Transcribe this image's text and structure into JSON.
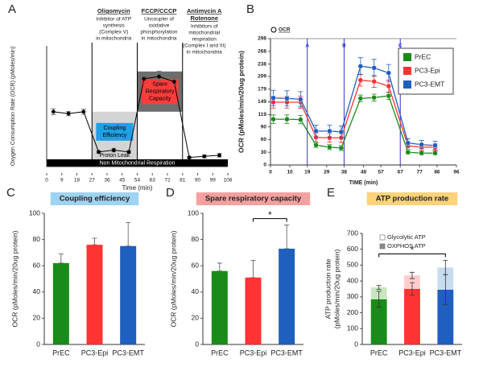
{
  "chart_data": [
    {
      "panel": "A",
      "type": "line",
      "x_label": "Time (min)",
      "y_label": "Oxygen Consumption Rate (OCR) (pMoles/min)",
      "x": [
        4,
        13,
        22,
        31,
        40,
        49,
        58,
        67,
        76,
        85,
        94,
        103
      ],
      "series": [
        {
          "color": "#000000",
          "values": [
            150,
            145,
            150,
            40,
            45,
            40,
            240,
            246,
            232,
            25,
            28,
            31
          ],
          "errors": [
            8,
            6,
            7,
            4,
            5,
            4,
            12,
            15,
            10,
            3,
            4,
            5
          ]
        }
      ],
      "xlim": [
        0,
        108
      ],
      "xticks": [
        0,
        9,
        18,
        27,
        36,
        45,
        54,
        63,
        72,
        81,
        90,
        99,
        108
      ],
      "ylim": [
        0,
        330
      ],
      "injections": [
        {
          "x": 27,
          "name": "Oligomycin",
          "note": [
            "Inhibitor of ATP",
            "synthesis",
            "(Complex V)",
            "in mitochondria"
          ]
        },
        {
          "x": 54,
          "name": "FCCP/CCCP",
          "note": [
            "Uncoupler of",
            "oxidative",
            "phosphorylation",
            "in mitochondria"
          ]
        },
        {
          "x": 81,
          "name": "Antimycin A",
          "name2": "Rotenone",
          "note": [
            "Inhibitors of",
            "mitochondrial",
            "respiration",
            "(Complex I and III)",
            "in mitochondria"
          ]
        }
      ],
      "regions": [
        {
          "label": [
            "Non Mitochondrial Respiration"
          ],
          "x": [
            0,
            108
          ],
          "y": [
            0,
            20
          ],
          "color": "#000000",
          "text_color": "#ffffff"
        },
        {
          "label": [
            "Coupling",
            "Efficiency"
          ],
          "x": [
            27,
            54
          ],
          "y": [
            40,
            150
          ],
          "color": "#d4d4d4",
          "text_color": "#000000",
          "label_color": "#1ea0e6"
        },
        {
          "label": [
            "Proton Leak"
          ],
          "x": [
            27,
            54
          ],
          "y": [
            20,
            40
          ],
          "color": "#d4d4d4",
          "text_color": "#000000"
        },
        {
          "label": [
            "Spare",
            "Respiratory",
            "Capacity"
          ],
          "x": [
            54,
            81
          ],
          "y": [
            150,
            260
          ],
          "color": "#6e6e6e",
          "text_color": "#000000",
          "label_color": "#ff3b3b"
        }
      ]
    },
    {
      "panel": "B",
      "type": "line",
      "legend_note": "OCR",
      "x_label": "TIME (min)",
      "y_label": "OCR (pMoles/min/20ug protein)",
      "x": [
        1.5,
        8.5,
        15.5,
        23.5,
        30.5,
        36.5,
        46.5,
        53.5,
        61,
        71,
        78,
        85
      ],
      "series": [
        {
          "name": "PrEC",
          "color": "#1a8a1a",
          "values": [
            108,
            108,
            107,
            47,
            42,
            40,
            157,
            159,
            163,
            30,
            28,
            28
          ],
          "errors": [
            10,
            10,
            10,
            6,
            6,
            6,
            8,
            8,
            8,
            4,
            4,
            4
          ]
        },
        {
          "name": "PC3-Epi",
          "color": "#ff3333",
          "values": [
            148,
            148,
            148,
            65,
            64,
            64,
            200,
            197,
            186,
            45,
            42,
            42
          ],
          "errors": [
            14,
            14,
            14,
            10,
            10,
            10,
            14,
            14,
            14,
            8,
            8,
            8
          ]
        },
        {
          "name": "PC3-EMT",
          "color": "#1f5fbf",
          "values": [
            158,
            157,
            155,
            80,
            80,
            78,
            233,
            229,
            217,
            52,
            48,
            46
          ],
          "errors": [
            18,
            18,
            18,
            14,
            14,
            14,
            20,
            20,
            20,
            10,
            10,
            10
          ]
        }
      ],
      "xlim": [
        0,
        96
      ],
      "xticks": [
        0,
        10,
        19,
        29,
        38,
        48,
        57,
        67,
        77,
        86,
        96
      ],
      "ylim": [
        0,
        298
      ],
      "yticks": [
        0,
        30,
        60,
        90,
        119,
        149,
        179,
        209,
        238,
        268,
        298
      ],
      "injections": [
        {
          "x": 19,
          "name": "A"
        },
        {
          "x": 38,
          "name": "B"
        },
        {
          "x": 67,
          "name": "C"
        }
      ],
      "legend": "right"
    },
    {
      "panel": "C",
      "type": "bar",
      "title": "Coupling efficiency",
      "title_color": "#9fd3f2",
      "y_label": "OCR (pMoles/min/20ug protein)",
      "categories": [
        "PrEC",
        "PC3-Epi",
        "PC3-EMT"
      ],
      "values": [
        62,
        76,
        75
      ],
      "errors": [
        7,
        5,
        18
      ],
      "colors": [
        "#1a8a1a",
        "#ff3333",
        "#1f5fbf"
      ],
      "ylim": [
        0,
        100
      ],
      "yticks": [
        0,
        20,
        40,
        60,
        80,
        100
      ]
    },
    {
      "panel": "D",
      "type": "bar",
      "title": "Spare respiratory capacity",
      "title_color": "#f5a0a0",
      "y_label": "OCR (pMoles/min/20ug protein)",
      "categories": [
        "PrEC",
        "PC3-Epi",
        "PC3-EMT"
      ],
      "values": [
        56,
        51,
        73
      ],
      "errors": [
        6,
        13,
        18
      ],
      "colors": [
        "#1a8a1a",
        "#ff3333",
        "#1f5fbf"
      ],
      "ylim": [
        0,
        100
      ],
      "yticks": [
        0,
        20,
        40,
        60,
        80,
        100
      ],
      "significance": {
        "pair": [
          1,
          2
        ],
        "label": "*"
      }
    },
    {
      "panel": "E",
      "type": "stacked_bar",
      "title": "ATP production rate",
      "title_color": "#fcd27a",
      "y_label": [
        "ATP production rate",
        "(pMoles/min/20ug protein)"
      ],
      "categories": [
        "PrEC",
        "PC3-Epi",
        "PC3-EMT"
      ],
      "series": [
        {
          "name": "OXPHOS ATP",
          "color": "#8c8c8c",
          "colors": [
            "#1a8a1a",
            "#ff3333",
            "#1f5fbf"
          ],
          "values": [
            285,
            350,
            345
          ],
          "errors": [
            50,
            40,
            95
          ]
        },
        {
          "name": "Glycolytic ATP",
          "color": "#ffffff",
          "colors": [
            "#c9e6c1",
            "#ffcccc",
            "#c8dcf0"
          ],
          "values": [
            75,
            85,
            140
          ],
          "errors": [
            12,
            20,
            45
          ]
        }
      ],
      "ylim": [
        0,
        700
      ],
      "yticks": [
        0,
        100,
        200,
        300,
        400,
        500,
        600,
        700
      ],
      "legend": "top-left",
      "significance": {
        "pair": [
          0,
          2
        ],
        "label": "*"
      }
    }
  ]
}
